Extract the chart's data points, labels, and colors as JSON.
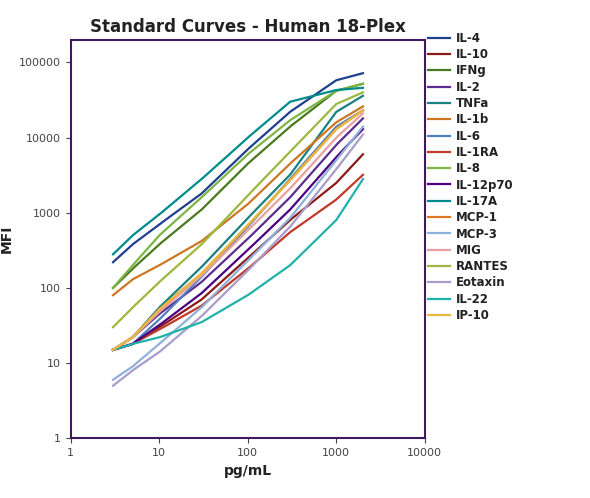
{
  "title": "Standard Curves - Human 18-Plex",
  "xlabel": "pg/mL",
  "ylabel": "MFI",
  "xlim": [
    1,
    10000
  ],
  "ylim": [
    1,
    200000
  ],
  "series": [
    {
      "label": "IL-4",
      "color": "#1F3F8F",
      "x": [
        3,
        5,
        10,
        30,
        100,
        300,
        1000,
        2000
      ],
      "y": [
        220,
        380,
        700,
        1800,
        7000,
        22000,
        58000,
        72000
      ]
    },
    {
      "label": "IL-10",
      "color": "#8B1A1A",
      "x": [
        3,
        5,
        10,
        30,
        100,
        300,
        1000,
        2000
      ],
      "y": [
        15,
        18,
        30,
        70,
        250,
        800,
        2500,
        6000
      ]
    },
    {
      "label": "IFNg",
      "color": "#4A7A1E",
      "x": [
        3,
        5,
        10,
        30,
        100,
        300,
        1000,
        2000
      ],
      "y": [
        100,
        180,
        380,
        1100,
        4500,
        14000,
        42000,
        52000
      ]
    },
    {
      "label": "IL-2",
      "color": "#5B2D8E",
      "x": [
        3,
        5,
        10,
        30,
        100,
        300,
        1000,
        2000
      ],
      "y": [
        15,
        22,
        45,
        120,
        450,
        1600,
        8000,
        18000
      ]
    },
    {
      "label": "TNFa",
      "color": "#1A8080",
      "x": [
        3,
        5,
        10,
        30,
        100,
        300,
        1000,
        2000
      ],
      "y": [
        15,
        22,
        55,
        190,
        850,
        3200,
        22000,
        36000
      ]
    },
    {
      "label": "IL-1b",
      "color": "#CC7722",
      "x": [
        3,
        5,
        10,
        30,
        100,
        300,
        1000,
        2000
      ],
      "y": [
        80,
        130,
        200,
        420,
        1300,
        4500,
        16000,
        26000
      ]
    },
    {
      "label": "IL-6",
      "color": "#5080C0",
      "x": [
        3,
        5,
        10,
        30,
        100,
        300,
        1000,
        2000
      ],
      "y": [
        15,
        18,
        38,
        140,
        650,
        2800,
        14000,
        23000
      ]
    },
    {
      "label": "IL-1RA",
      "color": "#C0392B",
      "x": [
        3,
        5,
        10,
        30,
        100,
        300,
        1000,
        2000
      ],
      "y": [
        15,
        18,
        28,
        58,
        180,
        550,
        1500,
        3200
      ]
    },
    {
      "label": "IL-8",
      "color": "#7DB544",
      "x": [
        3,
        5,
        10,
        30,
        100,
        300,
        1000,
        2000
      ],
      "y": [
        100,
        200,
        500,
        1600,
        6000,
        17000,
        42000,
        52000
      ]
    },
    {
      "label": "IL-12p70",
      "color": "#4B0082",
      "x": [
        3,
        5,
        10,
        30,
        100,
        300,
        1000,
        2000
      ],
      "y": [
        15,
        18,
        32,
        85,
        320,
        1100,
        5500,
        13000
      ]
    },
    {
      "label": "IL-17A",
      "color": "#008B8B",
      "x": [
        3,
        5,
        10,
        30,
        100,
        300,
        1000,
        2000
      ],
      "y": [
        280,
        500,
        950,
        2800,
        10000,
        30000,
        43000,
        46000
      ]
    },
    {
      "label": "MCP-1",
      "color": "#E07820",
      "x": [
        3,
        5,
        10,
        30,
        100,
        300,
        1000,
        2000
      ],
      "y": [
        15,
        22,
        52,
        155,
        680,
        2700,
        13000,
        23000
      ]
    },
    {
      "label": "MCP-3",
      "color": "#8FB0D8",
      "x": [
        3,
        5,
        10,
        30,
        100,
        300,
        1000,
        2000
      ],
      "y": [
        6,
        9,
        18,
        55,
        230,
        850,
        5000,
        14000
      ]
    },
    {
      "label": "MIG",
      "color": "#E8A0A0",
      "x": [
        3,
        5,
        10,
        30,
        100,
        300,
        1000,
        2000
      ],
      "y": [
        15,
        22,
        48,
        145,
        580,
        2100,
        10000,
        21000
      ]
    },
    {
      "label": "RANTES",
      "color": "#9DB840",
      "x": [
        3,
        5,
        10,
        30,
        100,
        300,
        1000,
        2000
      ],
      "y": [
        30,
        55,
        120,
        380,
        1700,
        6500,
        28000,
        40000
      ]
    },
    {
      "label": "Eotaxin",
      "color": "#A89CC8",
      "x": [
        3,
        5,
        10,
        30,
        100,
        300,
        1000,
        2000
      ],
      "y": [
        5,
        8,
        14,
        42,
        170,
        650,
        3800,
        11000
      ]
    },
    {
      "label": "IL-22",
      "color": "#20B2AA",
      "x": [
        3,
        5,
        10,
        30,
        100,
        300,
        1000,
        2000
      ],
      "y": [
        15,
        18,
        22,
        35,
        80,
        200,
        800,
        2800
      ]
    },
    {
      "label": "IP-10",
      "color": "#E8B840",
      "x": [
        3,
        5,
        10,
        30,
        100,
        300,
        1000,
        2000
      ],
      "y": [
        15,
        22,
        52,
        155,
        680,
        2700,
        13000,
        23000
      ]
    }
  ],
  "spine_color": "#3D1A5E",
  "background_color": "#FFFFFF",
  "title_fontsize": 12,
  "axis_label_fontsize": 10,
  "legend_fontsize": 8.5,
  "line_width": 1.6,
  "figsize": [
    5.9,
    4.98
  ],
  "dpi": 100
}
